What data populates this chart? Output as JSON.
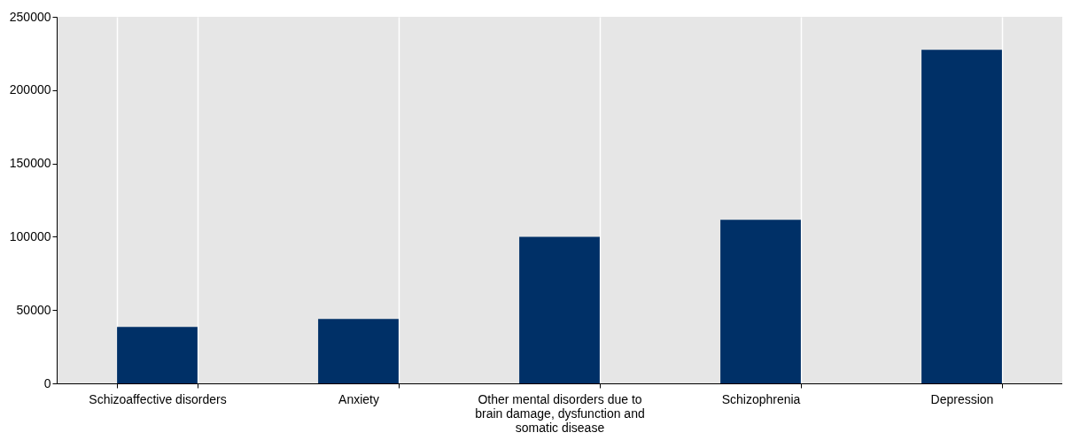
{
  "chart_data": {
    "type": "bar",
    "categories": [
      "Schizoaffective disorders",
      "Anxiety",
      "Other mental disorders due to brain damage, dysfunction and somatic disease",
      "Schizophrenia",
      "Depression"
    ],
    "values": [
      38500,
      44000,
      100000,
      111500,
      227500
    ],
    "color": "#003067",
    "ylim": [
      0,
      250000
    ],
    "yticks": [
      0,
      50000,
      100000,
      150000,
      200000,
      250000
    ],
    "grid": "x"
  }
}
